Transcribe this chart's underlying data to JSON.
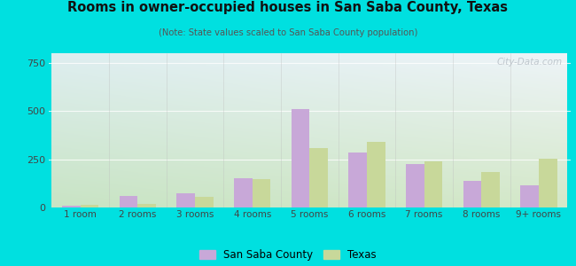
{
  "title": "Rooms in owner-occupied houses in San Saba County, Texas",
  "subtitle": "(Note: State values scaled to San Saba County population)",
  "categories": [
    "1 room",
    "2 rooms",
    "3 rooms",
    "4 rooms",
    "5 rooms",
    "6 rooms",
    "7 rooms",
    "8 rooms",
    "9+ rooms"
  ],
  "san_saba": [
    10,
    60,
    75,
    150,
    510,
    285,
    225,
    140,
    115
  ],
  "texas": [
    12,
    18,
    55,
    145,
    310,
    340,
    238,
    185,
    255
  ],
  "county_color": "#c8a8d8",
  "texas_color": "#c8d89a",
  "ylim": [
    0,
    800
  ],
  "yticks": [
    0,
    250,
    500,
    750
  ],
  "background_outer": "#00e0e0",
  "bg_top_left": "#d0e8d8",
  "bg_top_right": "#e8f2f8",
  "bg_bottom_left": "#c8e4c8",
  "bg_bottom_right": "#e0eef0",
  "legend_county": "San Saba County",
  "legend_texas": "Texas",
  "watermark": "City-Data.com",
  "bar_width": 0.32
}
